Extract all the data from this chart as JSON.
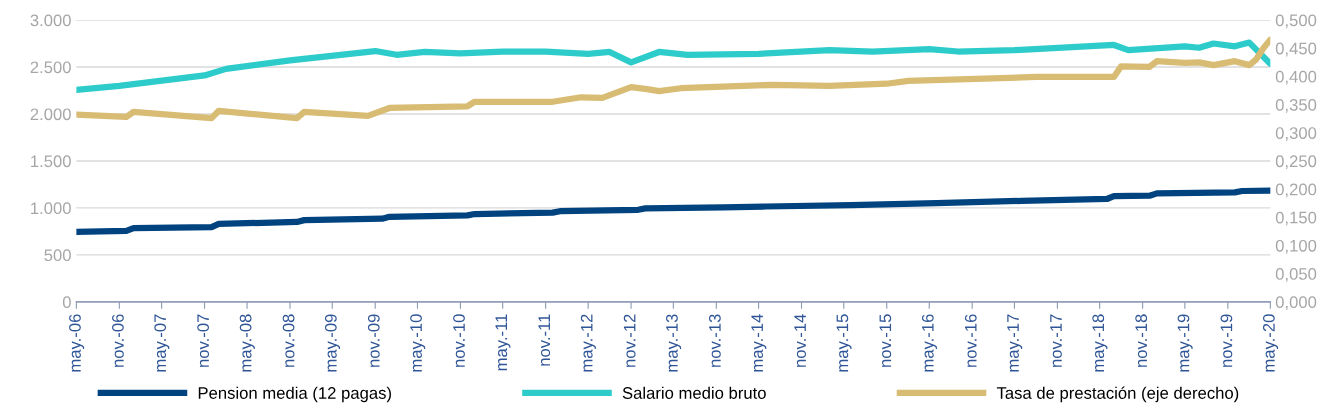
{
  "chart_data": {
    "type": "line",
    "xlim": [
      "2006-05",
      "2020-05"
    ],
    "xticks": [
      {
        "value": "2006-05",
        "label": "may.-06"
      },
      {
        "value": "2006-11",
        "label": "nov.-06"
      },
      {
        "value": "2007-05",
        "label": "may.-07"
      },
      {
        "value": "2007-11",
        "label": "nov.-07"
      },
      {
        "value": "2008-05",
        "label": "may.-08"
      },
      {
        "value": "2008-11",
        "label": "nov.-08"
      },
      {
        "value": "2009-05",
        "label": "may.-09"
      },
      {
        "value": "2009-11",
        "label": "nov.-09"
      },
      {
        "value": "2010-05",
        "label": "may.-10"
      },
      {
        "value": "2010-11",
        "label": "nov.-10"
      },
      {
        "value": "2011-05",
        "label": "may.-11"
      },
      {
        "value": "2011-11",
        "label": "nov.-11"
      },
      {
        "value": "2012-05",
        "label": "may.-12"
      },
      {
        "value": "2012-11",
        "label": "nov.-12"
      },
      {
        "value": "2013-05",
        "label": "may.-13"
      },
      {
        "value": "2013-11",
        "label": "nov.-13"
      },
      {
        "value": "2014-05",
        "label": "may.-14"
      },
      {
        "value": "2014-11",
        "label": "nov.-14"
      },
      {
        "value": "2015-05",
        "label": "may.-15"
      },
      {
        "value": "2015-11",
        "label": "nov.-15"
      },
      {
        "value": "2016-05",
        "label": "may.-16"
      },
      {
        "value": "2016-11",
        "label": "nov.-16"
      },
      {
        "value": "2017-05",
        "label": "may.-17"
      },
      {
        "value": "2017-11",
        "label": "nov.-17"
      },
      {
        "value": "2018-05",
        "label": "may.-18"
      },
      {
        "value": "2018-11",
        "label": "nov.-18"
      },
      {
        "value": "2019-05",
        "label": "may.-19"
      },
      {
        "value": "2019-11",
        "label": "nov.-19"
      },
      {
        "value": "2020-05",
        "label": "may.-20"
      }
    ],
    "ylim": [
      0,
      3000
    ],
    "yticks": [
      {
        "value": 0,
        "label": "0"
      },
      {
        "value": 500,
        "label": "500"
      },
      {
        "value": 1000,
        "label": "1.000"
      },
      {
        "value": 1500,
        "label": "1.500"
      },
      {
        "value": 2000,
        "label": "2.000"
      },
      {
        "value": 2500,
        "label": "2.500"
      },
      {
        "value": 3000,
        "label": "3.000"
      }
    ],
    "y2lim": [
      0,
      0.5
    ],
    "y2ticks": [
      {
        "value": 0,
        "label": "0,000"
      },
      {
        "value": 0.05,
        "label": "0,050"
      },
      {
        "value": 0.1,
        "label": "0,100"
      },
      {
        "value": 0.15,
        "label": "0,150"
      },
      {
        "value": 0.2,
        "label": "0,200"
      },
      {
        "value": 0.25,
        "label": "0,250"
      },
      {
        "value": 0.3,
        "label": "0,300"
      },
      {
        "value": 0.35,
        "label": "0,350"
      },
      {
        "value": 0.4,
        "label": "0,400"
      },
      {
        "value": 0.45,
        "label": "0,450"
      },
      {
        "value": 0.5,
        "label": "0,500"
      }
    ],
    "grid": "y",
    "legend": "bottom",
    "marker": "none",
    "line_style": "solid",
    "series": [
      {
        "name": "Pension media (12 pagas)",
        "color": "#00437f",
        "x": [
          "2006-05",
          "2006-12",
          "2007-01",
          "2007-12",
          "2008-01",
          "2008-12",
          "2009-01",
          "2009-12",
          "2010-01",
          "2010-12",
          "2011-01",
          "2011-12",
          "2012-01",
          "2012-12",
          "2013-01",
          "2013-12",
          "2014-06",
          "2015-06",
          "2016-06",
          "2017-06",
          "2018-06",
          "2018-07",
          "2018-12",
          "2019-01",
          "2019-12",
          "2020-01",
          "2020-05"
        ],
        "values": [
          745,
          755,
          785,
          795,
          830,
          850,
          870,
          885,
          905,
          920,
          935,
          950,
          965,
          980,
          995,
          1005,
          1015,
          1030,
          1050,
          1075,
          1095,
          1125,
          1130,
          1155,
          1165,
          1180,
          1185
        ]
      },
      {
        "name": "Salario medio bruto",
        "color": "#2ecbcb",
        "x": [
          "2006-05",
          "2006-11",
          "2007-11",
          "2008-02",
          "2008-11",
          "2009-11",
          "2010-02",
          "2010-06",
          "2010-11",
          "2011-05",
          "2011-11",
          "2012-05",
          "2012-08",
          "2012-11",
          "2013-03",
          "2013-07",
          "2014-05",
          "2015-03",
          "2015-09",
          "2016-05",
          "2016-09",
          "2017-05",
          "2018-07",
          "2018-09",
          "2019-05",
          "2019-07",
          "2019-09",
          "2019-12",
          "2020-02",
          "2020-05"
        ],
        "values": [
          2256,
          2300,
          2410,
          2480,
          2570,
          2670,
          2630,
          2660,
          2645,
          2665,
          2665,
          2640,
          2660,
          2550,
          2660,
          2630,
          2640,
          2680,
          2665,
          2690,
          2665,
          2680,
          2735,
          2680,
          2720,
          2705,
          2750,
          2720,
          2760,
          2535
        ]
      },
      {
        "name": "Tasa de prestación (eje derecho)",
        "color": "#d8bc74",
        "axis": "y2",
        "x": [
          "2006-05",
          "2006-12",
          "2007-01",
          "2007-12",
          "2008-01",
          "2008-12",
          "2009-01",
          "2009-10",
          "2010-01",
          "2010-12",
          "2011-01",
          "2011-12",
          "2012-04",
          "2012-07",
          "2012-11",
          "2013-01",
          "2013-03",
          "2013-06",
          "2014-07",
          "2015-03",
          "2015-11",
          "2016-02",
          "2017-08",
          "2018-07",
          "2018-08",
          "2018-12",
          "2019-01",
          "2019-05",
          "2019-07",
          "2019-09",
          "2019-12",
          "2020-02",
          "2020-03",
          "2020-04",
          "2020-05"
        ],
        "values": [
          0.332,
          0.328,
          0.337,
          0.326,
          0.339,
          0.326,
          0.337,
          0.33,
          0.344,
          0.347,
          0.355,
          0.355,
          0.363,
          0.362,
          0.381,
          0.378,
          0.374,
          0.379,
          0.385,
          0.383,
          0.387,
          0.392,
          0.399,
          0.399,
          0.418,
          0.417,
          0.427,
          0.424,
          0.425,
          0.42,
          0.427,
          0.42,
          0.43,
          0.45,
          0.465
        ]
      }
    ]
  }
}
